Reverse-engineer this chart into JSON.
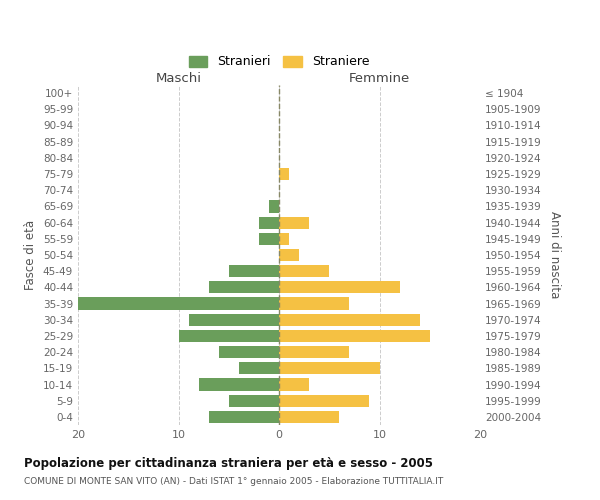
{
  "age_groups": [
    "0-4",
    "5-9",
    "10-14",
    "15-19",
    "20-24",
    "25-29",
    "30-34",
    "35-39",
    "40-44",
    "45-49",
    "50-54",
    "55-59",
    "60-64",
    "65-69",
    "70-74",
    "75-79",
    "80-84",
    "85-89",
    "90-94",
    "95-99",
    "100+"
  ],
  "birth_years": [
    "2000-2004",
    "1995-1999",
    "1990-1994",
    "1985-1989",
    "1980-1984",
    "1975-1979",
    "1970-1974",
    "1965-1969",
    "1960-1964",
    "1955-1959",
    "1950-1954",
    "1945-1949",
    "1940-1944",
    "1935-1939",
    "1930-1934",
    "1925-1929",
    "1920-1924",
    "1915-1919",
    "1910-1914",
    "1905-1909",
    "≤ 1904"
  ],
  "maschi": [
    7,
    5,
    8,
    4,
    6,
    10,
    9,
    20,
    7,
    5,
    0,
    2,
    2,
    1,
    0,
    0,
    0,
    0,
    0,
    0,
    0
  ],
  "femmine": [
    6,
    9,
    3,
    10,
    7,
    15,
    14,
    7,
    12,
    5,
    2,
    1,
    3,
    0,
    0,
    1,
    0,
    0,
    0,
    0,
    0
  ],
  "color_maschi": "#6a9e5b",
  "color_femmine": "#f5c143",
  "title": "Popolazione per cittadinanza straniera per età e sesso - 2005",
  "subtitle": "COMUNE DI MONTE SAN VITO (AN) - Dati ISTAT 1° gennaio 2005 - Elaborazione TUTTITALIA.IT",
  "xlabel_left": "Maschi",
  "xlabel_right": "Femmine",
  "ylabel_left": "Fasce di età",
  "ylabel_right": "Anni di nascita",
  "legend_stranieri": "Stranieri",
  "legend_straniere": "Straniere",
  "xlim": 20,
  "bg_color": "#ffffff",
  "grid_color": "#cccccc",
  "bar_height": 0.75
}
